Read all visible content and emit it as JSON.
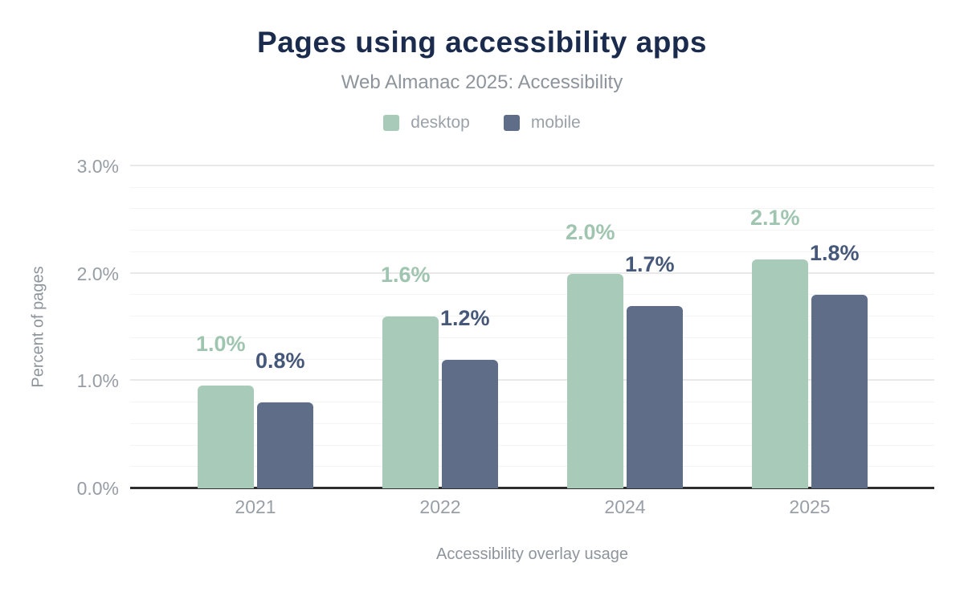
{
  "header": {
    "title": "Pages using accessibility apps",
    "subtitle": "Web Almanac 2025: Accessibility"
  },
  "legend": {
    "items": [
      {
        "label": "desktop",
        "color": "#a8cab9"
      },
      {
        "label": "mobile",
        "color": "#5f6d89"
      }
    ]
  },
  "chart_data": {
    "type": "bar",
    "title": "Pages using accessibility apps",
    "subtitle": "Web Almanac 2025: Accessibility",
    "categories": [
      "2021",
      "2022",
      "2024",
      "2025"
    ],
    "series": [
      {
        "name": "desktop",
        "color": "#a8cab9",
        "label_color": "#9fc5b0",
        "values": [
          0.96,
          1.6,
          2.0,
          2.13
        ],
        "value_labels": [
          "1.0%",
          "1.6%",
          "2.0%",
          "2.1%"
        ]
      },
      {
        "name": "mobile",
        "color": "#5f6d89",
        "label_color": "#46587a",
        "values": [
          0.8,
          1.2,
          1.7,
          1.8
        ],
        "value_labels": [
          "0.8%",
          "1.2%",
          "1.7%",
          "1.8%"
        ]
      }
    ],
    "xlabel": "Accessibility overlay usage",
    "ylabel": "Percent of pages",
    "ylim": [
      0,
      3
    ],
    "yticks": [
      {
        "value": 0,
        "label": "0.0%"
      },
      {
        "value": 1,
        "label": "1.0%"
      },
      {
        "value": 2,
        "label": "2.0%"
      },
      {
        "value": 3,
        "label": "3.0%"
      }
    ],
    "grid": {
      "orientation": "horizontal",
      "minor_step": 0.2,
      "major_step": 1.0,
      "on": true
    },
    "legend_position": "top"
  },
  "colors": {
    "title": "#1b2b4d",
    "subtitle_gray": "#8d949c",
    "tick_gray": "#989fa7",
    "axis_line": "#2e2e2e",
    "grid_major": "#e9e9e9",
    "grid_minor": "#f4f4f4",
    "background": "#ffffff"
  }
}
